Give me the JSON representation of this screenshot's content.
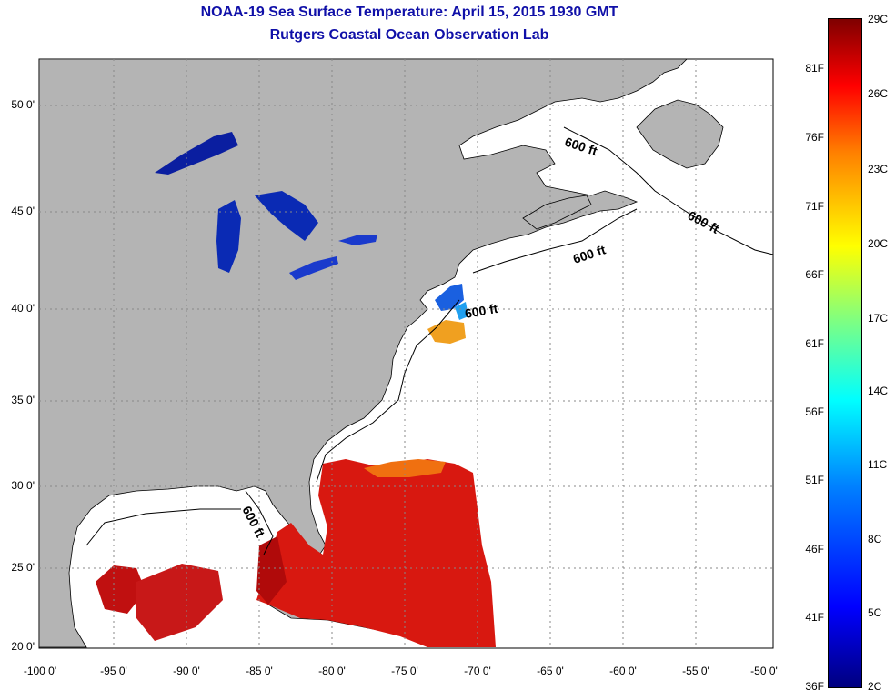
{
  "title": {
    "line1": "NOAA-19 Sea Surface Temperature:  April 15, 2015 1930 GMT",
    "line2": "Rutgers Coastal Ocean Observation Lab"
  },
  "map": {
    "lat_labels": [
      "50 0'",
      "45 0'",
      "40 0'",
      "35 0'",
      "30 0'",
      "25 0'",
      "20 0'"
    ],
    "lon_labels": [
      "-100 0'",
      "-95 0'",
      "-90 0'",
      "-85 0'",
      "-80 0'",
      "-75 0'",
      "-70 0'",
      "-65 0'",
      "-60 0'",
      "-55 0'",
      "-50 0'"
    ],
    "isobath_label": "600 ft",
    "colors": {
      "land": "#b4b4b4",
      "water": "#ffffff",
      "title": "#1010a8"
    }
  },
  "colorbar": {
    "fahrenheit": [
      "81F",
      "76F",
      "71F",
      "66F",
      "61F",
      "56F",
      "51F",
      "46F",
      "41F",
      "36F"
    ],
    "celsius": [
      "29C",
      "26C",
      "23C",
      "20C",
      "17C",
      "14C",
      "11C",
      "8C",
      "5C",
      "2C"
    ]
  }
}
